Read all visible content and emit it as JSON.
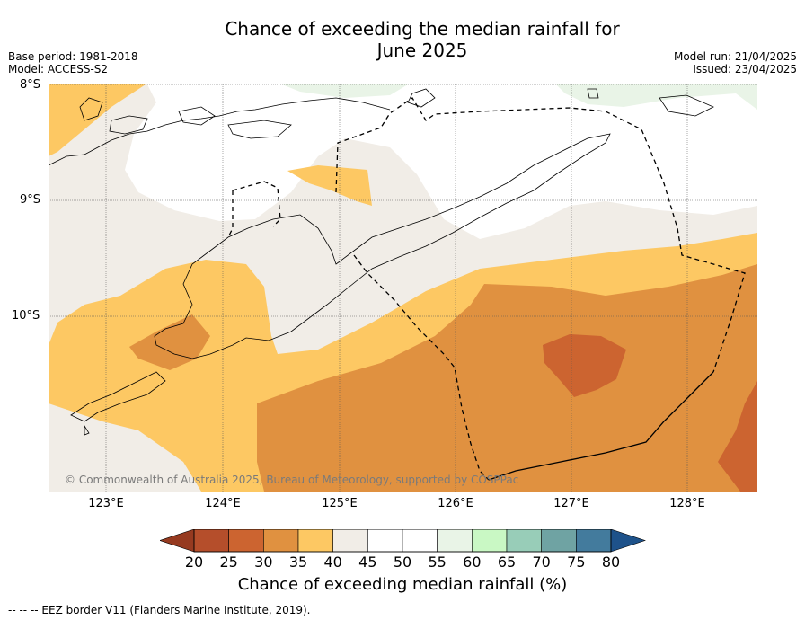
{
  "title_line1": "Chance of exceeding the median rainfall for",
  "title_line2": "June 2025",
  "base_period": "Base period: 1981-2018",
  "model": "Model: ACCESS-S2",
  "model_run": "Model run: 21/04/2025",
  "issued": "Issued: 23/04/2025",
  "lat_labels": [
    "8°S",
    "9°S",
    "10°S"
  ],
  "lon_labels": [
    "123°E",
    "124°E",
    "125°E",
    "126°E",
    "127°E",
    "128°E"
  ],
  "copyright": "© Commonwealth of Australia 2025, Bureau of Meteorology, supported by COSPPac",
  "colorbar": {
    "ticks": [
      "20",
      "25",
      "30",
      "35",
      "40",
      "45",
      "50",
      "55",
      "60",
      "65",
      "70",
      "75",
      "80"
    ],
    "colors": [
      "#b54e2b",
      "#cc6430",
      "#e09140",
      "#fdc863",
      "#f1ede7",
      "#ffffff",
      "#ffffff",
      "#e9f4e7",
      "#c9f8c4",
      "#98cdb8",
      "#6fa3a3",
      "#437b9d"
    ],
    "under_color": "#963a20",
    "over_color": "#1e528a",
    "title": "Chance of exceeding median rainfall (%)"
  },
  "footnote": "--  --  -- EEZ border V11 (Flanders Marine Institute, 2019)."
}
